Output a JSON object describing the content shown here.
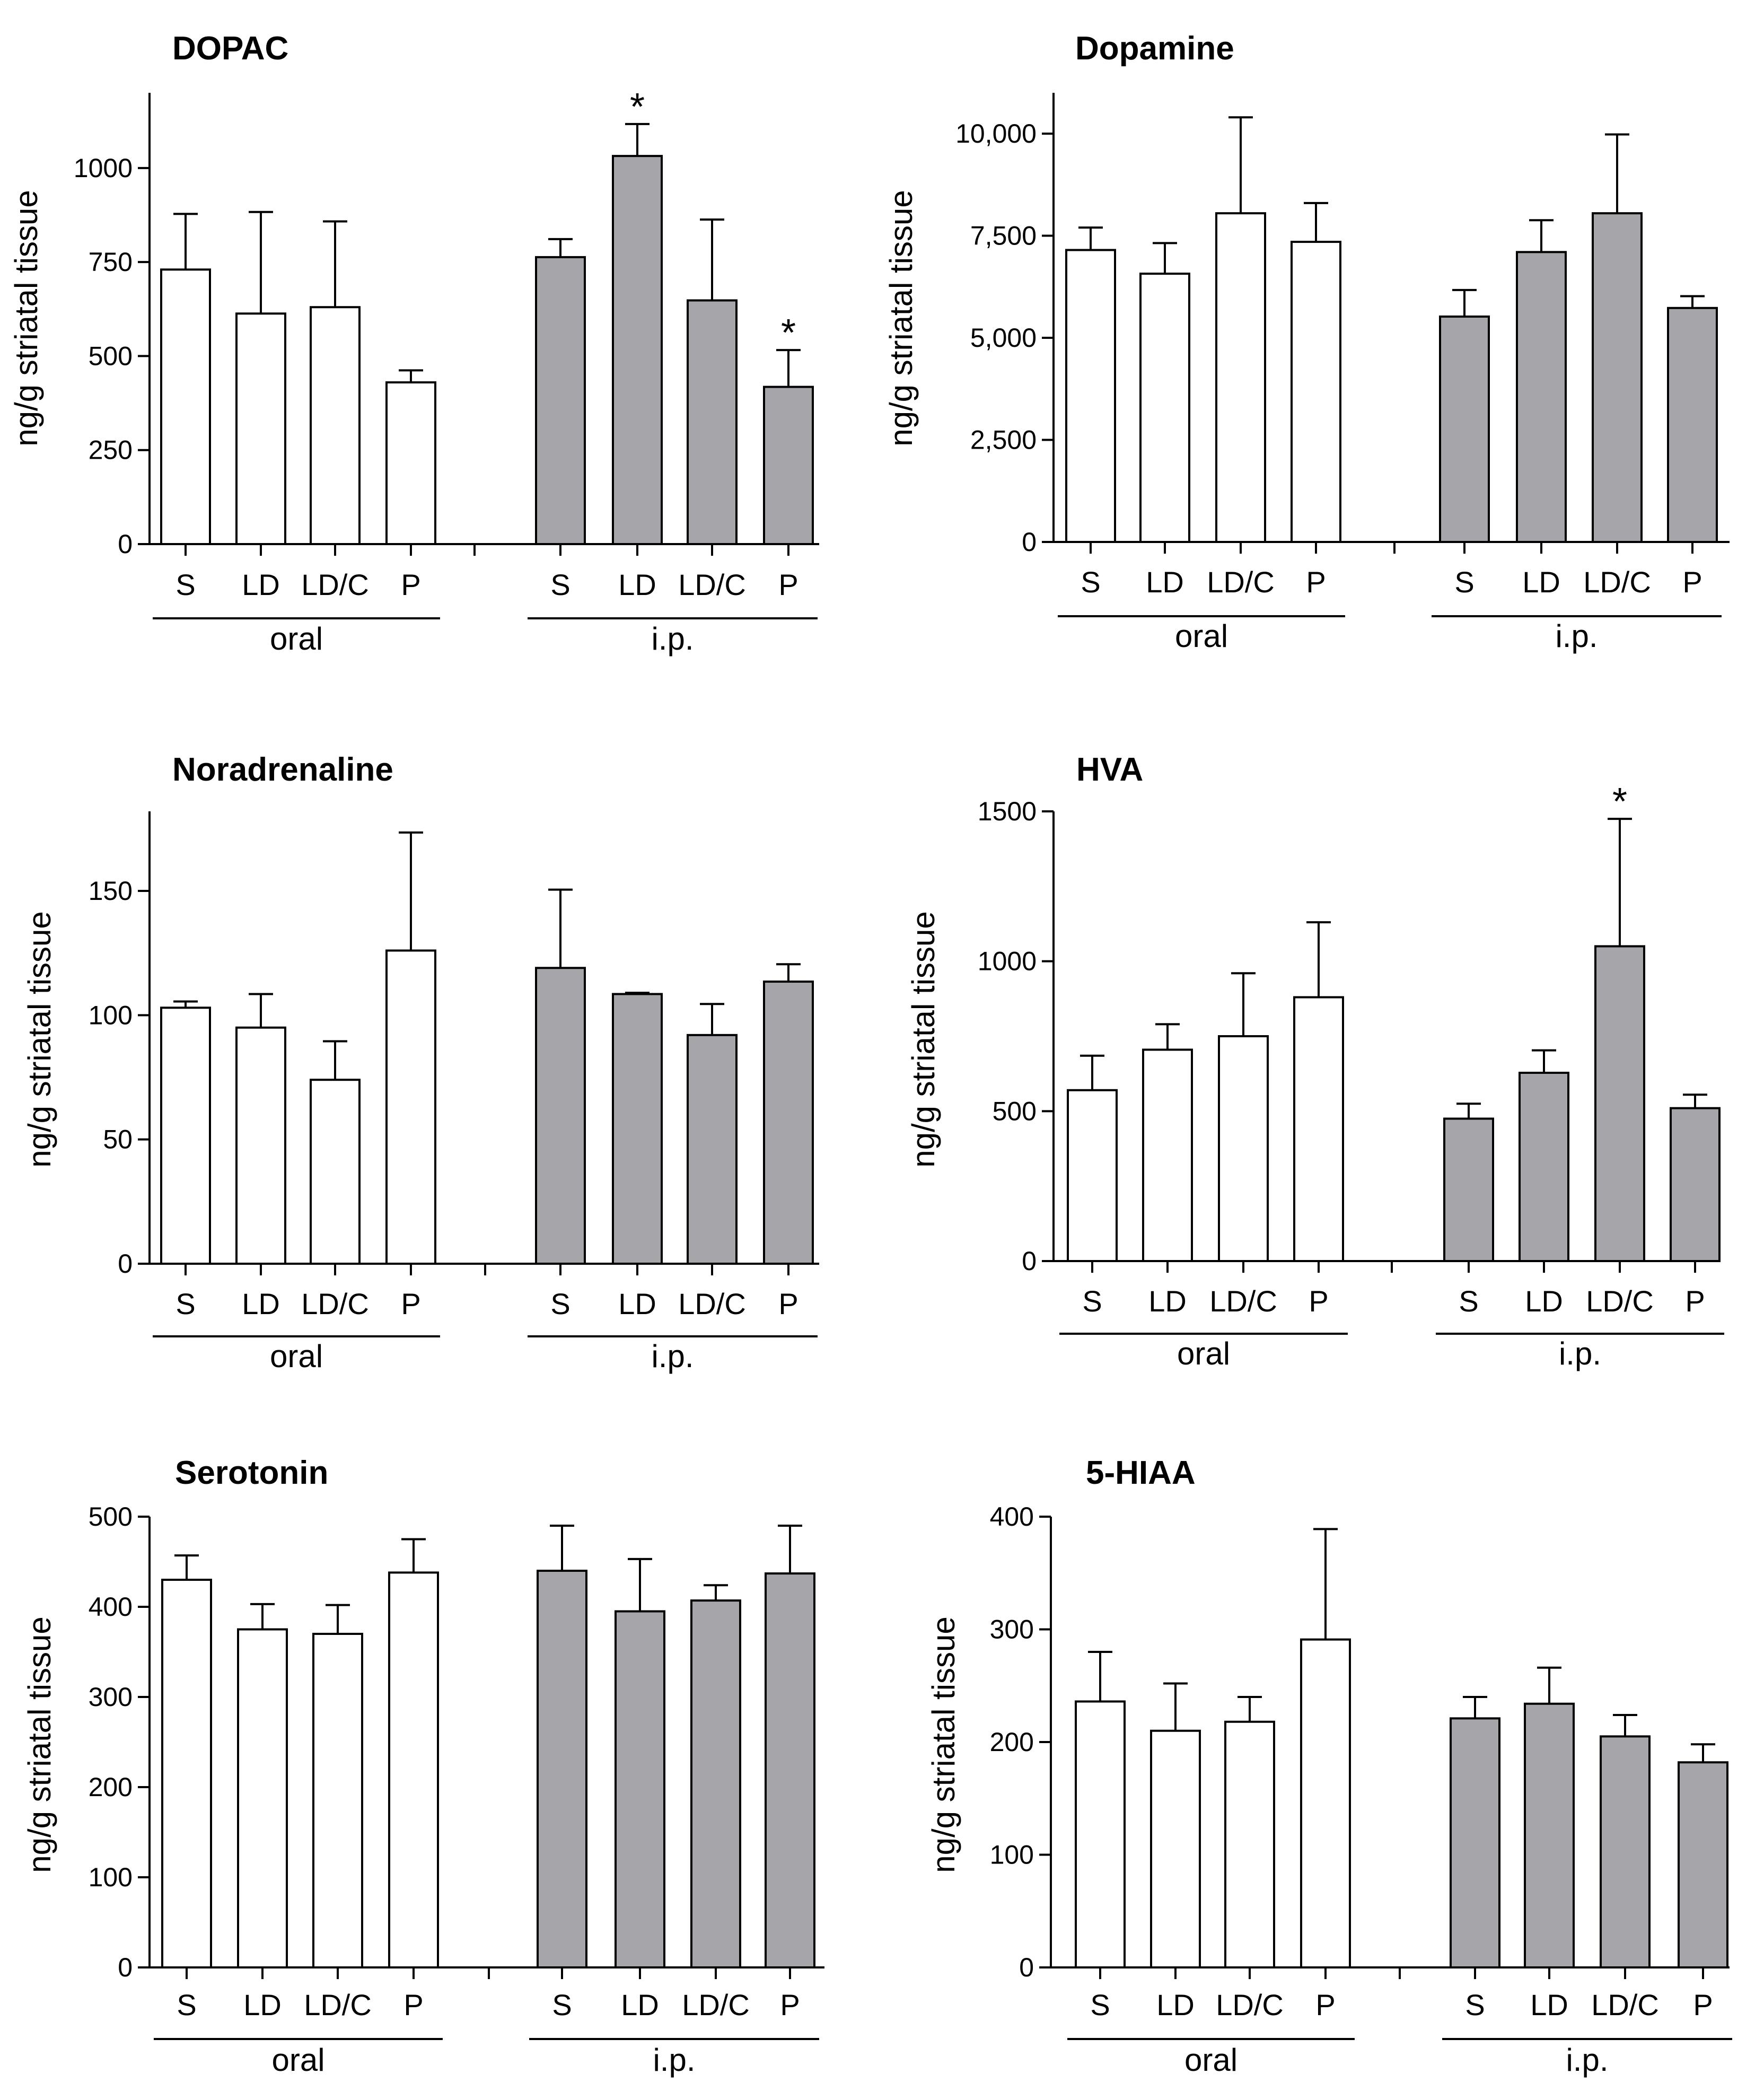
{
  "figure": {
    "groups": [
      "oral",
      "i.p."
    ],
    "group_colors": {
      "oral": "#ffffff",
      "i.p.": "#a6a6aa"
    }
  },
  "chart_data": [
    {
      "type": "bar",
      "title": "DOPAC",
      "ylabel": "ng/g striatal tissue",
      "ylim": [
        0,
        1200
      ],
      "yticks": [
        0,
        250,
        500,
        750,
        1000
      ],
      "ytick_labels": [
        "0",
        "250",
        "500",
        "750",
        "1000"
      ],
      "categories": [
        "S",
        "LD",
        "LD/C",
        "P"
      ],
      "series": [
        {
          "name": "oral",
          "values": [
            730,
            613,
            630,
            430
          ],
          "errors": [
            148,
            270,
            228,
            32
          ],
          "significant": [
            false,
            false,
            false,
            false
          ]
        },
        {
          "name": "i.p.",
          "values": [
            763,
            1032,
            648,
            418
          ],
          "errors": [
            48,
            85,
            215,
            98
          ],
          "significant": [
            false,
            true,
            false,
            true
          ]
        }
      ]
    },
    {
      "type": "bar",
      "title": "Dopamine",
      "ylabel": "ng/g striatal tissue",
      "ylim": [
        0,
        11000
      ],
      "yticks": [
        0,
        2500,
        5000,
        7500,
        10000
      ],
      "ytick_labels": [
        "0",
        "2,500",
        "5,000",
        "7,500",
        "10,000"
      ],
      "categories": [
        "S",
        "LD",
        "LD/C",
        "P"
      ],
      "series": [
        {
          "name": "oral",
          "values": [
            7150,
            6570,
            8050,
            7350
          ],
          "errors": [
            550,
            750,
            2350,
            950
          ],
          "significant": [
            false,
            false,
            false,
            false
          ]
        },
        {
          "name": "i.p.",
          "values": [
            5520,
            7100,
            8050,
            5730
          ],
          "errors": [
            650,
            780,
            1930,
            290
          ],
          "significant": [
            false,
            false,
            false,
            false
          ]
        }
      ]
    },
    {
      "type": "bar",
      "title": "Noradrenaline",
      "ylabel": "ng/g striatal tissue",
      "ylim": [
        0,
        182
      ],
      "yticks": [
        0,
        50,
        100,
        150
      ],
      "ytick_labels": [
        "0",
        "50",
        "100",
        "150"
      ],
      "categories": [
        "S",
        "LD",
        "LD/C",
        "P"
      ],
      "series": [
        {
          "name": "oral",
          "values": [
            103,
            95,
            74,
            126
          ],
          "errors": [
            2.5,
            13.5,
            15.5,
            47.5
          ],
          "significant": [
            false,
            false,
            false,
            false
          ]
        },
        {
          "name": "i.p.",
          "values": [
            119,
            108.5,
            92,
            113.5
          ],
          "errors": [
            31.5,
            0.5,
            12.5,
            7
          ],
          "significant": [
            false,
            false,
            false,
            false
          ]
        }
      ]
    },
    {
      "type": "bar",
      "title": "HVA",
      "ylabel": "ng/g striatal tissue",
      "ylim": [
        0,
        1500
      ],
      "yticks": [
        0,
        500,
        1000,
        1500
      ],
      "ytick_labels": [
        "0",
        "500",
        "1000",
        "1500"
      ],
      "categories": [
        "S",
        "LD",
        "LD/C",
        "P"
      ],
      "series": [
        {
          "name": "oral",
          "values": [
            570,
            705,
            750,
            880
          ],
          "errors": [
            115,
            85,
            210,
            250
          ],
          "significant": [
            false,
            false,
            false,
            false
          ]
        },
        {
          "name": "i.p.",
          "values": [
            475,
            628,
            1050,
            510
          ],
          "errors": [
            50,
            75,
            425,
            45
          ],
          "significant": [
            false,
            false,
            true,
            false
          ]
        }
      ]
    },
    {
      "type": "bar",
      "title": "Serotonin",
      "ylabel": "ng/g striatal tissue",
      "ylim": [
        0,
        500
      ],
      "yticks": [
        0,
        100,
        200,
        300,
        400,
        500
      ],
      "ytick_labels": [
        "0",
        "100",
        "200",
        "300",
        "400",
        "500"
      ],
      "categories": [
        "S",
        "LD",
        "LD/C",
        "P"
      ],
      "series": [
        {
          "name": "oral",
          "values": [
            430,
            375,
            370,
            438
          ],
          "errors": [
            27,
            28,
            32,
            37
          ],
          "significant": [
            false,
            false,
            false,
            false
          ]
        },
        {
          "name": "i.p.",
          "values": [
            440,
            395,
            407,
            437
          ],
          "errors": [
            50,
            58,
            17,
            53
          ],
          "significant": [
            false,
            false,
            false,
            false
          ]
        }
      ]
    },
    {
      "type": "bar",
      "title": "5-HIAA",
      "ylabel": "ng/g striatal tissue",
      "ylim": [
        0,
        400
      ],
      "yticks": [
        0,
        100,
        200,
        300,
        400
      ],
      "ytick_labels": [
        "0",
        "100",
        "200",
        "300",
        "400"
      ],
      "categories": [
        "S",
        "LD",
        "LD/C",
        "P"
      ],
      "series": [
        {
          "name": "oral",
          "values": [
            236,
            210,
            218,
            291
          ],
          "errors": [
            44,
            42,
            22,
            98
          ],
          "significant": [
            false,
            false,
            false,
            false
          ]
        },
        {
          "name": "i.p.",
          "values": [
            221,
            234,
            205,
            182
          ],
          "errors": [
            19,
            32,
            19,
            16
          ],
          "significant": [
            false,
            false,
            false,
            false
          ]
        }
      ]
    }
  ]
}
